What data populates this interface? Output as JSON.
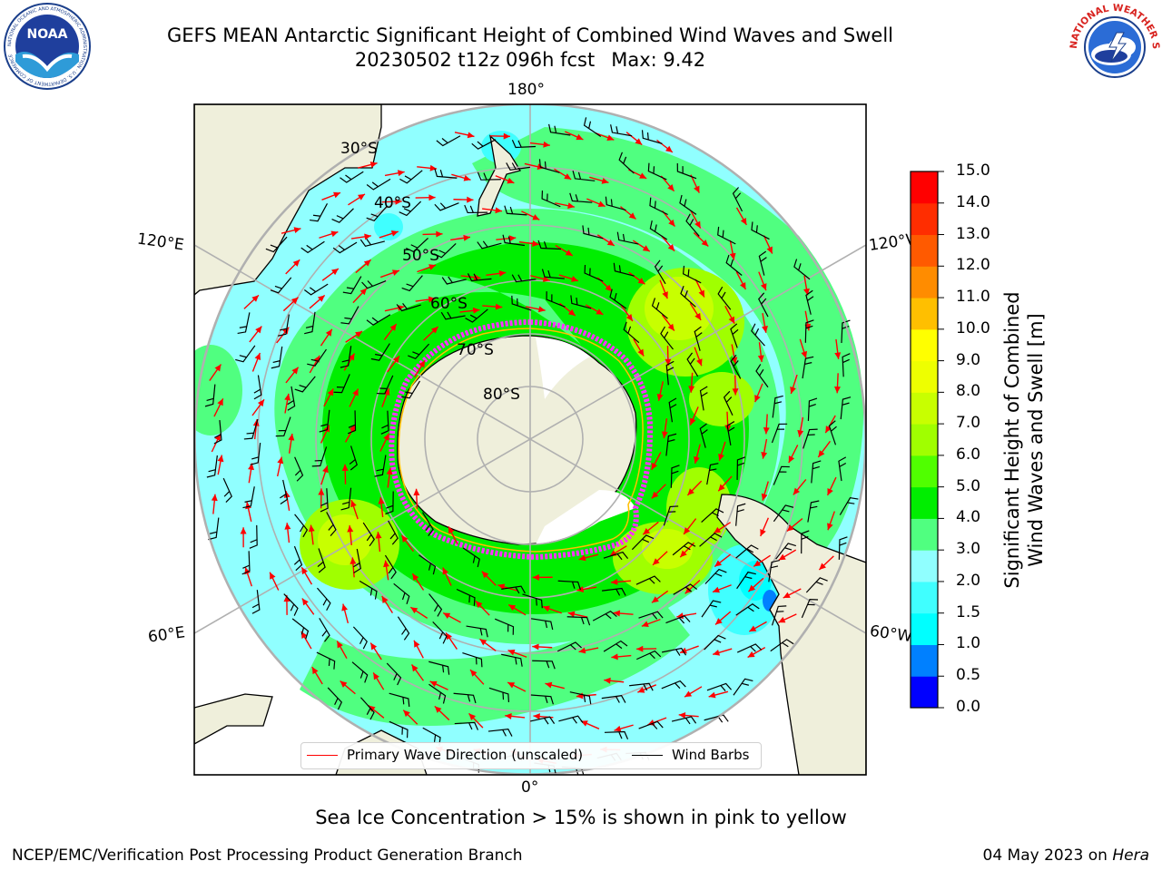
{
  "header": {
    "title_line1": "GEFS MEAN Antarctic Significant Height of Combined Wind Waves and Swell",
    "run_info": "20230502 t12z 096h fcst",
    "max_text": "Max: 9.42"
  },
  "logos": {
    "left": "noaa-logo",
    "right": "national-weather-service-logo",
    "noaa_text": "NOAA",
    "noaa_ring_text": "NATIONAL OCEANIC AND ATMOSPHERIC ADMINISTRATION · U.S. DEPARTMENT OF COMMERCE",
    "nws_ring_text": "NATIONAL WEATHER SERVICE"
  },
  "map": {
    "projection": "south polar stereographic",
    "longitude_labels": [
      "180°",
      "120°E",
      "120°W",
      "60°E",
      "60°W",
      "0°"
    ],
    "latitude_labels": [
      "30°S",
      "40°S",
      "50°S",
      "60°S",
      "70°S",
      "80°S"
    ],
    "field_max": 9.42,
    "colors": {
      "land": "#efefdb",
      "ice_shelf": "#ffffff",
      "grid": "#b0b0b0",
      "wave_arrow": "#ff0000",
      "wind_barb": "#000000",
      "sea_ice": "#ff33ff"
    }
  },
  "colorbar": {
    "title_line1": "Significant Height of Combined",
    "title_line2": "Wind Waves and Swell [m]",
    "ticks": [
      "0.0",
      "0.5",
      "1.0",
      "1.5",
      "2.0",
      "3.0",
      "4.0",
      "5.0",
      "6.0",
      "7.0",
      "8.0",
      "9.0",
      "10.0",
      "11.0",
      "12.0",
      "13.0",
      "14.0",
      "15.0"
    ],
    "colors": [
      "#0000ff",
      "#0080ff",
      "#00ffff",
      "#40ffff",
      "#90ffff",
      "#50ff80",
      "#00ee00",
      "#50ff00",
      "#a0ff00",
      "#c8ff00",
      "#eeff00",
      "#ffff00",
      "#ffbf00",
      "#ff8c00",
      "#ff5a00",
      "#ff2d00",
      "#ff0000"
    ]
  },
  "legend": {
    "wave_label": "Primary Wave Direction (unscaled)",
    "wind_label": "Wind Barbs"
  },
  "notes": {
    "sea_ice": "Sea Ice Concentration > 15% is shown in pink to yellow"
  },
  "footer": {
    "left": "NCEP/EMC/Verification Post Processing Product Generation Branch",
    "date": "04 May 2023 on",
    "machine": "Hera"
  }
}
